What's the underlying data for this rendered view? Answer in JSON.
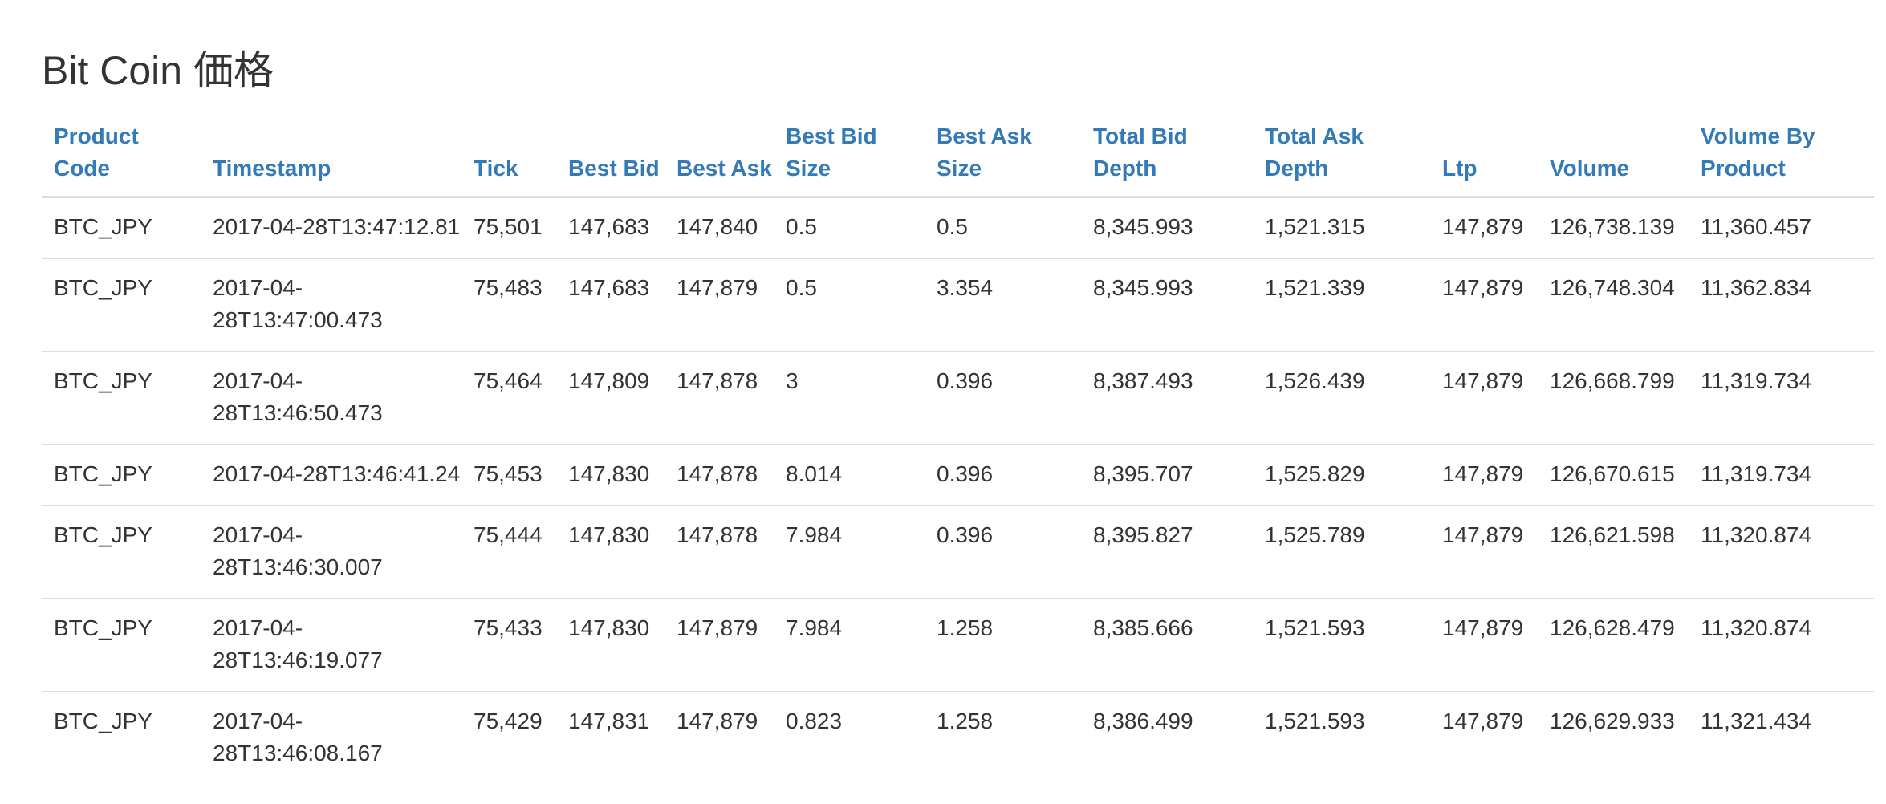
{
  "page": {
    "title": "Bit Coin 価格"
  },
  "table": {
    "headers": [
      "Product Code",
      "Timestamp",
      "Tick",
      "Best Bid",
      "Best Ask",
      "Best Bid Size",
      "Best Ask Size",
      "Total Bid Depth",
      "Total Ask Depth",
      "Ltp",
      "Volume",
      "Volume By Product"
    ],
    "rows": [
      [
        "BTC_JPY",
        "2017-04-28T13:47:12.81",
        "75,501",
        "147,683",
        "147,840",
        "0.5",
        "0.5",
        "8,345.993",
        "1,521.315",
        "147,879",
        "126,738.139",
        "11,360.457"
      ],
      [
        "BTC_JPY",
        "2017-04-28T13:47:00.473",
        "75,483",
        "147,683",
        "147,879",
        "0.5",
        "3.354",
        "8,345.993",
        "1,521.339",
        "147,879",
        "126,748.304",
        "11,362.834"
      ],
      [
        "BTC_JPY",
        "2017-04-28T13:46:50.473",
        "75,464",
        "147,809",
        "147,878",
        "3",
        "0.396",
        "8,387.493",
        "1,526.439",
        "147,879",
        "126,668.799",
        "11,319.734"
      ],
      [
        "BTC_JPY",
        "2017-04-28T13:46:41.24",
        "75,453",
        "147,830",
        "147,878",
        "8.014",
        "0.396",
        "8,395.707",
        "1,525.829",
        "147,879",
        "126,670.615",
        "11,319.734"
      ],
      [
        "BTC_JPY",
        "2017-04-28T13:46:30.007",
        "75,444",
        "147,830",
        "147,878",
        "7.984",
        "0.396",
        "8,395.827",
        "1,525.789",
        "147,879",
        "126,621.598",
        "11,320.874"
      ],
      [
        "BTC_JPY",
        "2017-04-28T13:46:19.077",
        "75,433",
        "147,830",
        "147,879",
        "7.984",
        "1.258",
        "8,385.666",
        "1,521.593",
        "147,879",
        "126,628.479",
        "11,320.874"
      ],
      [
        "BTC_JPY",
        "2017-04-28T13:46:08.167",
        "75,429",
        "147,831",
        "147,879",
        "0.823",
        "1.258",
        "8,386.499",
        "1,521.593",
        "147,879",
        "126,629.933",
        "11,321.434"
      ]
    ]
  },
  "colors": {
    "header_link": "#337ab7",
    "text": "#333333",
    "border": "#dddddd"
  }
}
